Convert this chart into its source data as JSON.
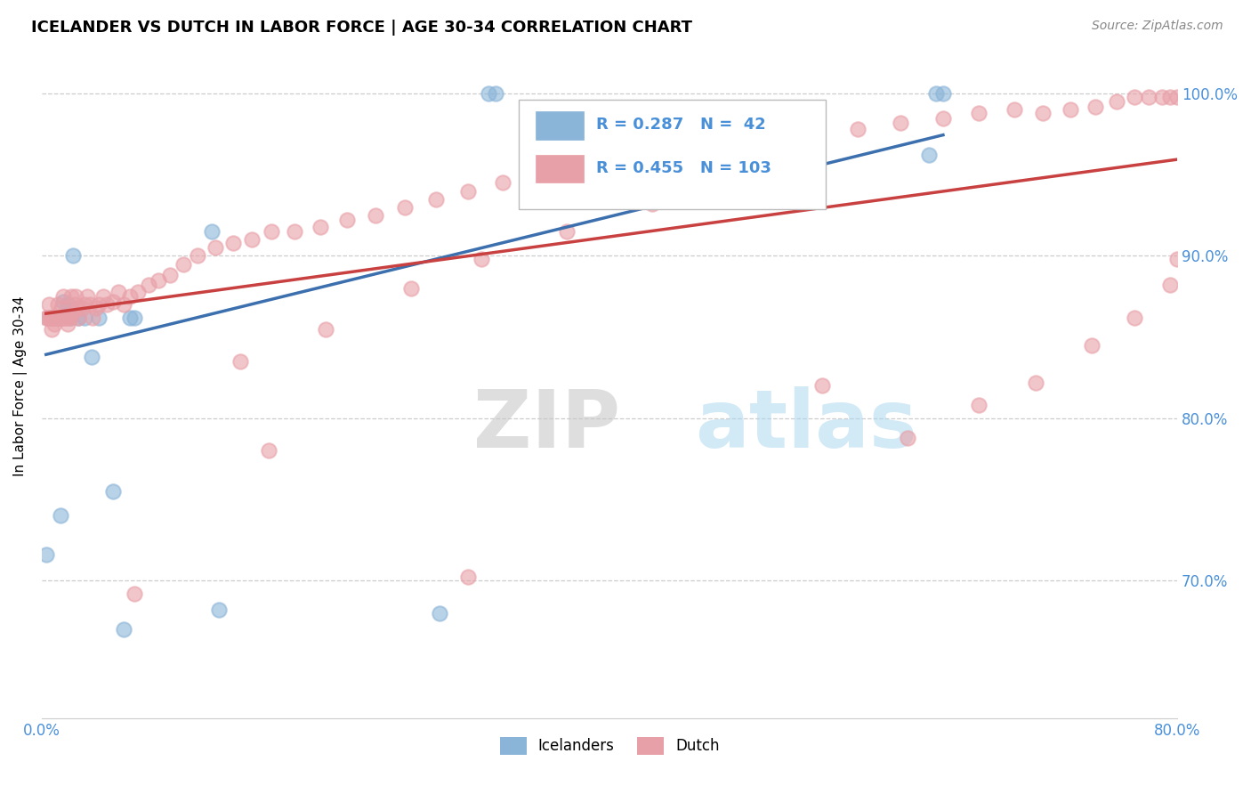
{
  "title": "ICELANDER VS DUTCH IN LABOR FORCE | AGE 30-34 CORRELATION CHART",
  "source": "Source: ZipAtlas.com",
  "ylabel": "In Labor Force | Age 30-34",
  "xlim": [
    0.0,
    0.8
  ],
  "ylim": [
    0.615,
    1.025
  ],
  "ytick_positions": [
    0.7,
    0.8,
    0.9,
    1.0
  ],
  "ytick_labels": [
    "70.0%",
    "80.0%",
    "90.0%",
    "100.0%"
  ],
  "xtick_pos": [
    0.0,
    0.1,
    0.2,
    0.3,
    0.4,
    0.5,
    0.6,
    0.7,
    0.8
  ],
  "xtick_labels": [
    "0.0%",
    "",
    "",
    "",
    "",
    "",
    "",
    "",
    "80.0%"
  ],
  "watermark_zip": "ZIP",
  "watermark_atlas": "atlas",
  "legend_blue_R": "0.287",
  "legend_blue_N": "42",
  "legend_pink_R": "0.455",
  "legend_pink_N": "103",
  "blue_fill": "#8ab4d8",
  "pink_fill": "#e8a0a8",
  "blue_line_color": "#3c6fad",
  "pink_line_color": "#c94040",
  "icelanders_x": [
    0.003,
    0.006,
    0.007,
    0.007,
    0.008,
    0.008,
    0.008,
    0.008,
    0.009,
    0.009,
    0.009,
    0.01,
    0.01,
    0.01,
    0.01,
    0.011,
    0.011,
    0.011,
    0.012,
    0.012,
    0.013,
    0.014,
    0.015,
    0.018,
    0.02,
    0.022,
    0.026,
    0.03,
    0.035,
    0.04,
    0.05,
    0.058,
    0.062,
    0.065,
    0.12,
    0.125,
    0.28,
    0.315,
    0.32,
    0.625,
    0.63,
    0.635
  ],
  "icelanders_y": [
    0.716,
    0.862,
    0.862,
    0.862,
    0.862,
    0.862,
    0.862,
    0.862,
    0.862,
    0.862,
    0.862,
    0.862,
    0.862,
    0.862,
    0.862,
    0.862,
    0.862,
    0.862,
    0.862,
    0.862,
    0.74,
    0.862,
    0.872,
    0.87,
    0.862,
    0.9,
    0.862,
    0.862,
    0.838,
    0.862,
    0.755,
    0.67,
    0.862,
    0.862,
    0.915,
    0.682,
    0.68,
    1.0,
    1.0,
    0.962,
    1.0,
    1.0
  ],
  "dutch_x": [
    0.003,
    0.004,
    0.005,
    0.005,
    0.006,
    0.007,
    0.007,
    0.008,
    0.008,
    0.009,
    0.009,
    0.01,
    0.01,
    0.011,
    0.011,
    0.012,
    0.012,
    0.013,
    0.014,
    0.015,
    0.015,
    0.016,
    0.017,
    0.018,
    0.019,
    0.02,
    0.021,
    0.022,
    0.023,
    0.024,
    0.025,
    0.026,
    0.028,
    0.03,
    0.032,
    0.034,
    0.036,
    0.038,
    0.04,
    0.043,
    0.046,
    0.05,
    0.054,
    0.058,
    0.062,
    0.068,
    0.075,
    0.082,
    0.09,
    0.1,
    0.11,
    0.122,
    0.135,
    0.148,
    0.162,
    0.178,
    0.196,
    0.215,
    0.235,
    0.256,
    0.278,
    0.3,
    0.325,
    0.35,
    0.375,
    0.4,
    0.428,
    0.456,
    0.485,
    0.515,
    0.545,
    0.575,
    0.605,
    0.635,
    0.66,
    0.685,
    0.705,
    0.725,
    0.742,
    0.757,
    0.77,
    0.78,
    0.789,
    0.795,
    0.8,
    0.14,
    0.2,
    0.26,
    0.31,
    0.37,
    0.43,
    0.49,
    0.55,
    0.61,
    0.66,
    0.7,
    0.74,
    0.77,
    0.795,
    0.8,
    0.065,
    0.16,
    0.3
  ],
  "dutch_y": [
    0.862,
    0.862,
    0.87,
    0.862,
    0.862,
    0.862,
    0.855,
    0.862,
    0.862,
    0.862,
    0.858,
    0.862,
    0.862,
    0.862,
    0.87,
    0.862,
    0.862,
    0.862,
    0.868,
    0.862,
    0.875,
    0.862,
    0.862,
    0.858,
    0.862,
    0.862,
    0.875,
    0.865,
    0.87,
    0.875,
    0.868,
    0.862,
    0.868,
    0.87,
    0.875,
    0.87,
    0.862,
    0.868,
    0.87,
    0.875,
    0.87,
    0.872,
    0.878,
    0.87,
    0.875,
    0.878,
    0.882,
    0.885,
    0.888,
    0.895,
    0.9,
    0.905,
    0.908,
    0.91,
    0.915,
    0.915,
    0.918,
    0.922,
    0.925,
    0.93,
    0.935,
    0.94,
    0.945,
    0.948,
    0.952,
    0.958,
    0.962,
    0.965,
    0.968,
    0.972,
    0.975,
    0.978,
    0.982,
    0.985,
    0.988,
    0.99,
    0.988,
    0.99,
    0.992,
    0.995,
    0.998,
    0.998,
    0.998,
    0.998,
    0.998,
    0.835,
    0.855,
    0.88,
    0.898,
    0.915,
    0.932,
    0.945,
    0.82,
    0.788,
    0.808,
    0.822,
    0.845,
    0.862,
    0.882,
    0.898,
    0.692,
    0.78,
    0.702
  ]
}
